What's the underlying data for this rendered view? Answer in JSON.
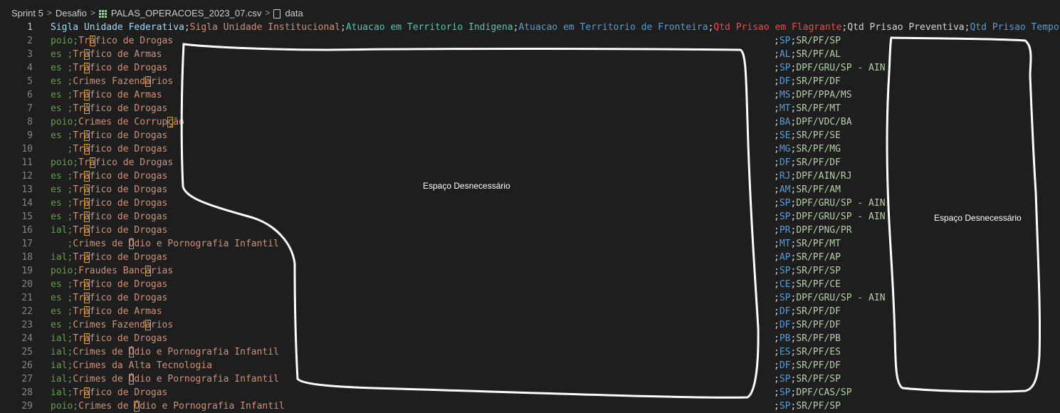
{
  "breadcrumb": {
    "items": [
      "Sprint 5",
      "Desafio",
      "PALAS_OPERACOES_2023_07.csv",
      "data"
    ],
    "separator": ">"
  },
  "editor": {
    "header_fields": [
      "Sigla Unidade Federativa",
      "Sigla Unidade Institucional",
      "Atuacao em Territorio Indigena",
      "Atuacao em Territorio de Fronteira",
      "Qtd Prisao em Flagrante",
      "Qtd Prisao Preventiva",
      "Qtd Prisao Temporar"
    ],
    "rows": [
      {
        "ln": "2",
        "prefix": "poio;",
        "crime_parts": [
          "Tr",
          "á",
          "fico de Drogas"
        ],
        "uf": "SP",
        "unit": "SR/PF/SP"
      },
      {
        "ln": "3",
        "prefix": "es ;",
        "crime_parts": [
          "Tr",
          "á",
          "fico de Armas"
        ],
        "uf": "AL",
        "unit": "SR/PF/AL"
      },
      {
        "ln": "4",
        "prefix": "es ;",
        "crime_parts": [
          "Tr",
          "á",
          "fico de Drogas"
        ],
        "uf": "SP",
        "unit": "DPF/GRU/SP - AIN"
      },
      {
        "ln": "5",
        "prefix": "es ;",
        "crime_parts": [
          "Crimes Fazend",
          "á",
          "rios"
        ],
        "uf": "DF",
        "unit": "SR/PF/DF"
      },
      {
        "ln": "6",
        "prefix": "es ;",
        "crime_parts": [
          "Tr",
          "á",
          "fico de Armas"
        ],
        "uf": "MS",
        "unit": "DPF/PPA/MS"
      },
      {
        "ln": "7",
        "prefix": "es ;",
        "crime_parts": [
          "Tr",
          "á",
          "fico de Drogas"
        ],
        "uf": "MT",
        "unit": "SR/PF/MT"
      },
      {
        "ln": "8",
        "prefix": "poio;",
        "crime_parts": [
          "Crimes de Corrup",
          "ç",
          "ão"
        ],
        "uf": "BA",
        "unit": "DPF/VDC/BA"
      },
      {
        "ln": "9",
        "prefix": "es ;",
        "crime_parts": [
          "Tr",
          "á",
          "fico de Drogas"
        ],
        "uf": "SE",
        "unit": "SR/PF/SE"
      },
      {
        "ln": "10",
        "prefix": "   ;",
        "crime_parts": [
          "Tr",
          "á",
          "fico de Drogas"
        ],
        "uf": "MG",
        "unit": "SR/PF/MG"
      },
      {
        "ln": "11",
        "prefix": "poio;",
        "crime_parts": [
          "Tr",
          "á",
          "fico de Drogas"
        ],
        "uf": "DF",
        "unit": "SR/PF/DF"
      },
      {
        "ln": "12",
        "prefix": "es ;",
        "crime_parts": [
          "Tr",
          "á",
          "fico de Drogas"
        ],
        "uf": "RJ",
        "unit": "DPF/AIN/RJ"
      },
      {
        "ln": "13",
        "prefix": "es ;",
        "crime_parts": [
          "Tr",
          "á",
          "fico de Drogas"
        ],
        "uf": "AM",
        "unit": "SR/PF/AM"
      },
      {
        "ln": "14",
        "prefix": "es ;",
        "crime_parts": [
          "Tr",
          "á",
          "fico de Drogas"
        ],
        "uf": "SP",
        "unit": "DPF/GRU/SP - AIN"
      },
      {
        "ln": "15",
        "prefix": "es ;",
        "crime_parts": [
          "Tr",
          "á",
          "fico de Drogas"
        ],
        "uf": "SP",
        "unit": "DPF/GRU/SP - AIN"
      },
      {
        "ln": "16",
        "prefix": "ial;",
        "crime_parts": [
          "Tr",
          "á",
          "fico de Drogas"
        ],
        "uf": "PR",
        "unit": "DPF/PNG/PR"
      },
      {
        "ln": "17",
        "prefix": "   ;",
        "crime_parts": [
          "Crimes de ",
          "Ó",
          "dio e Pornografia Infantil"
        ],
        "uf": "MT",
        "unit": "SR/PF/MT"
      },
      {
        "ln": "18",
        "prefix": "ial;",
        "crime_parts": [
          "Tr",
          "á",
          "fico de Drogas"
        ],
        "uf": "AP",
        "unit": "SR/PF/AP"
      },
      {
        "ln": "19",
        "prefix": "poio;",
        "crime_parts": [
          "Fraudes Banc",
          "á",
          "rias"
        ],
        "uf": "SP",
        "unit": "SR/PF/SP"
      },
      {
        "ln": "20",
        "prefix": "es ;",
        "crime_parts": [
          "Tr",
          "á",
          "fico de Drogas"
        ],
        "uf": "CE",
        "unit": "SR/PF/CE"
      },
      {
        "ln": "21",
        "prefix": "es ;",
        "crime_parts": [
          "Tr",
          "á",
          "fico de Drogas"
        ],
        "uf": "SP",
        "unit": "DPF/GRU/SP - AIN"
      },
      {
        "ln": "22",
        "prefix": "es ;",
        "crime_parts": [
          "Tr",
          "á",
          "fico de Armas"
        ],
        "uf": "DF",
        "unit": "SR/PF/DF"
      },
      {
        "ln": "23",
        "prefix": "es ;",
        "crime_parts": [
          "Crimes Fazend",
          "á",
          "rios"
        ],
        "uf": "DF",
        "unit": "SR/PF/DF"
      },
      {
        "ln": "24",
        "prefix": "ial;",
        "crime_parts": [
          "Tr",
          "á",
          "fico de Drogas"
        ],
        "uf": "PB",
        "unit": "SR/PF/PB"
      },
      {
        "ln": "25",
        "prefix": "ial;",
        "crime_parts": [
          "Crimes de ",
          "Ó",
          "dio e Pornografia Infantil"
        ],
        "uf": "ES",
        "unit": "SR/PF/ES"
      },
      {
        "ln": "26",
        "prefix": "ial;",
        "crime_parts": [
          "Crimes da Alta Tecnologia",
          "",
          ""
        ],
        "uf": "DF",
        "unit": "SR/PF/DF"
      },
      {
        "ln": "27",
        "prefix": "ial;",
        "crime_parts": [
          "Crimes de ",
          "Ó",
          "dio e Pornografia Infantil"
        ],
        "uf": "SP",
        "unit": "SR/PF/SP"
      },
      {
        "ln": "28",
        "prefix": "ial;",
        "crime_parts": [
          "Tr",
          "á",
          "fico de Drogas"
        ],
        "uf": "SP",
        "unit": "DPF/CAS/SP"
      },
      {
        "ln": "29",
        "prefix": "poio;",
        "crime_parts": [
          "Crimes de ",
          "Ó",
          "dio e Pornografia Infantil"
        ],
        "uf": "SP",
        "unit": "SR/PF/SP"
      }
    ]
  },
  "annotations": {
    "label_1": "Espaço Desnecessário",
    "label_2": "Espaço Desnecessário"
  },
  "colors": {
    "background": "#1e1e1e",
    "annotation_stroke": "#ffffff",
    "highlight_box": "#d7a01c"
  }
}
